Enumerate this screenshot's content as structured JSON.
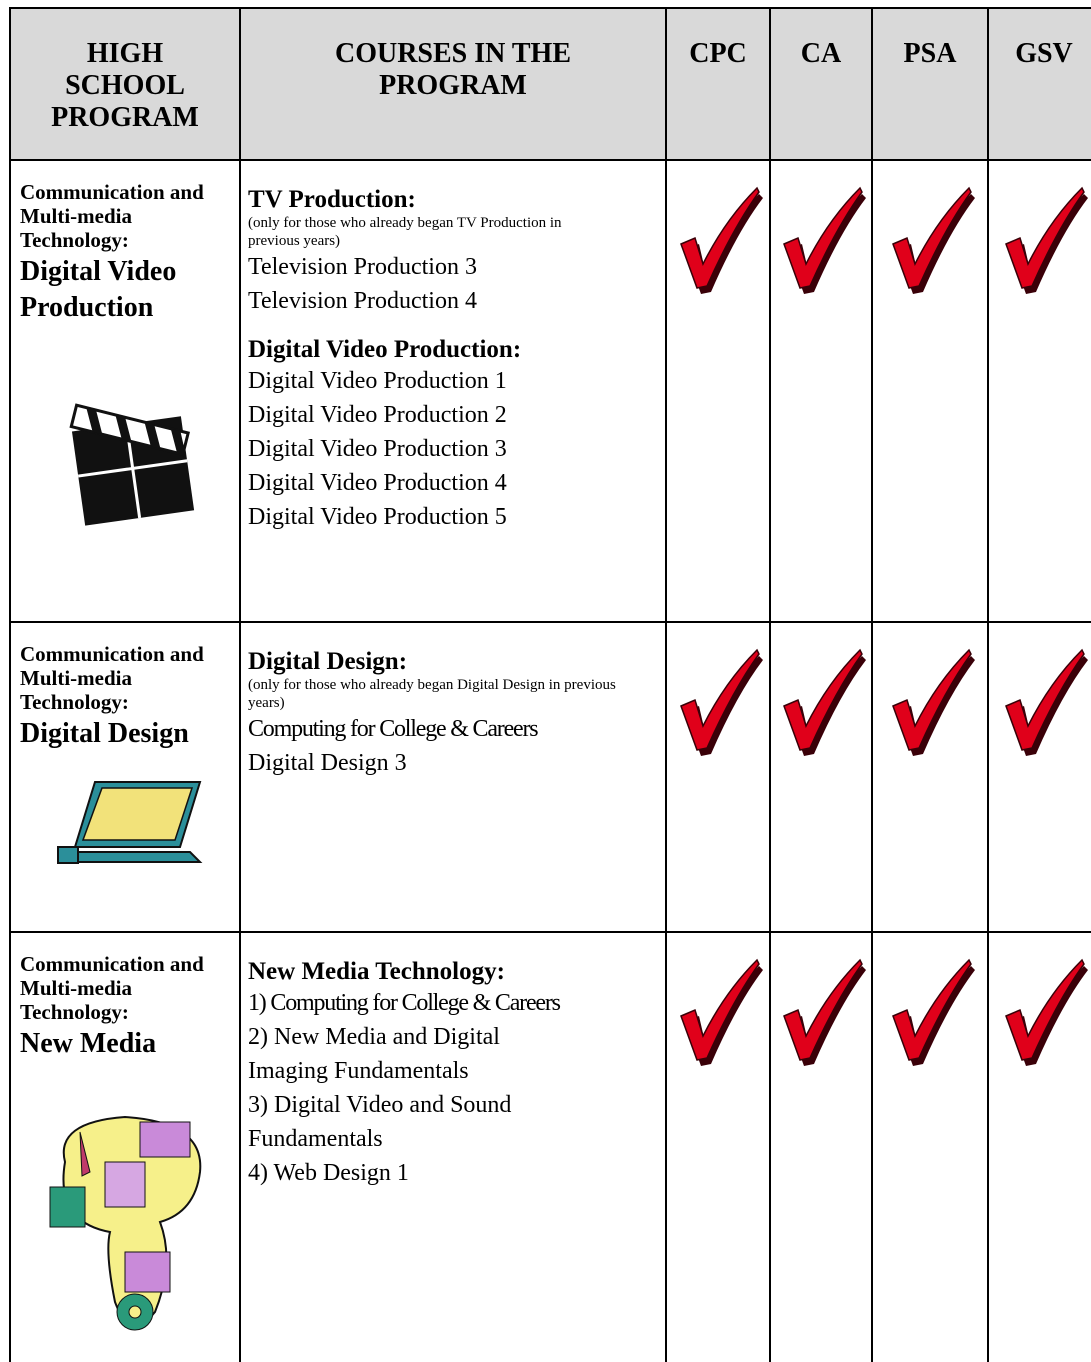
{
  "table": {
    "header": [
      "HIGH SCHOOL PROGRAM",
      "COURSES IN THE PROGRAM",
      "CPC",
      "CA",
      "PSA",
      "GSV"
    ],
    "rows": [
      {
        "program": {
          "category": "Communication and Multi-media Technology:",
          "name": "Digital Video Production"
        },
        "courses": [
          {
            "heading": "TV Production:",
            "note": "(only for those who already began TV Production in previous years)",
            "items": [
              "Television Production 3",
              "Television Production 4"
            ]
          },
          {
            "heading": "Digital Video Production:",
            "items": [
              "Digital Video Production 1",
              "Digital Video Production 2",
              "Digital Video Production 3",
              "Digital Video Production 4",
              "Digital Video Production 5"
            ]
          }
        ]
      },
      {
        "program": {
          "category": "Communication and Multi-media Technology:",
          "name": "Digital Design"
        },
        "courses": [
          {
            "heading": "Digital Design:",
            "note": "(only for those who already began Digital Design in previous years)",
            "items": [
              "Computing for College & Careers",
              "Digital Design 3"
            ]
          }
        ]
      },
      {
        "program": {
          "category": "Communication and Multi-media Technology:",
          "name": "New Media"
        },
        "courses": [
          {
            "heading": "New Media Technology:",
            "items": [
              "1) Computing for College & Careers",
              "2) New Media and Digital Imaging Fundamentals",
              "3) Digital Video and Sound Fundamentals",
              "4) Web Design 1"
            ]
          }
        ]
      }
    ]
  }
}
